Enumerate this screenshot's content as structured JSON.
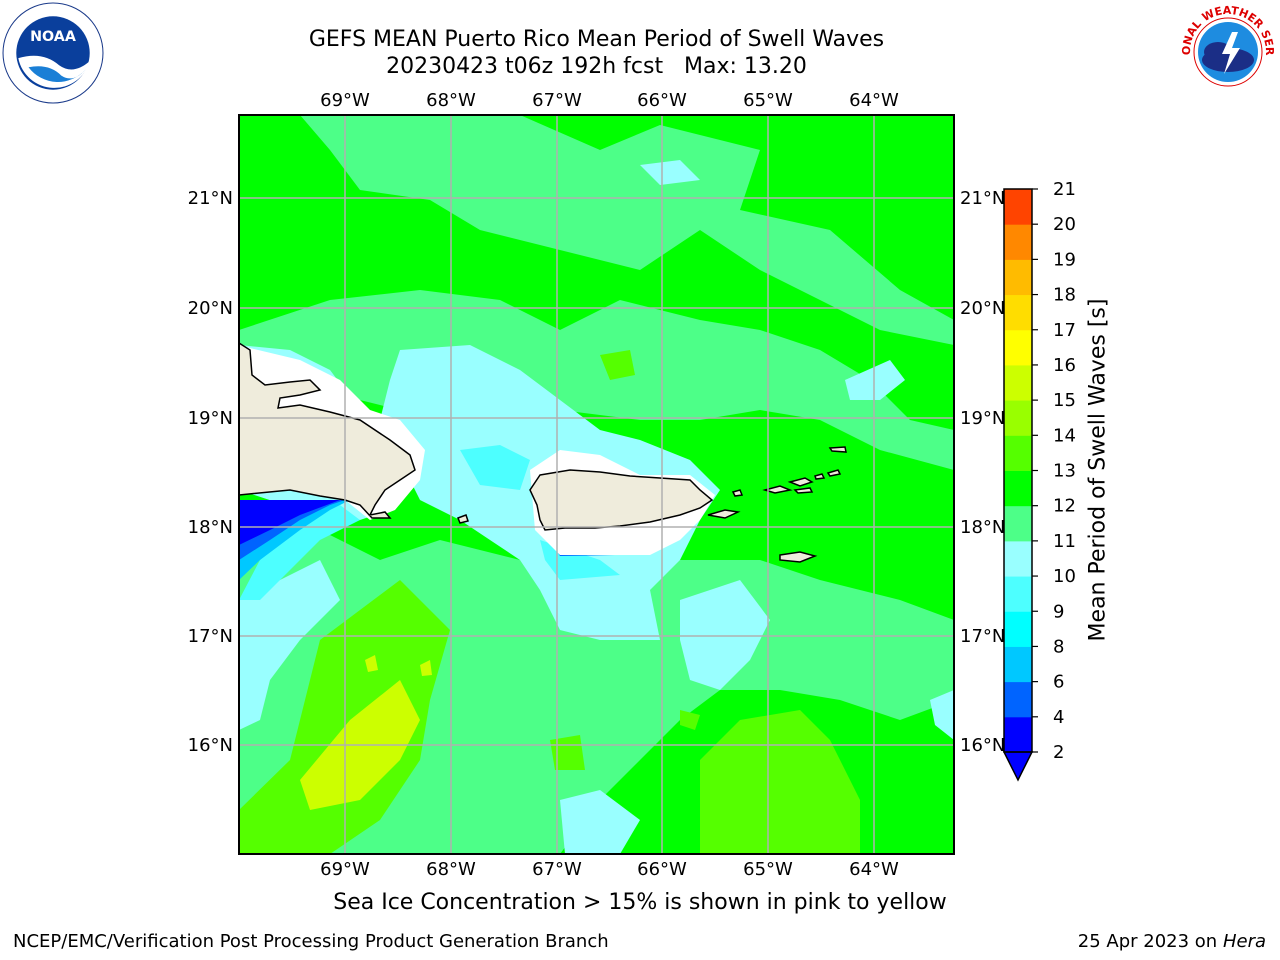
{
  "header": {
    "title_line1": "GEFS MEAN Puerto Rico Mean Period of Swell Waves",
    "title_line2": "20230423 t06z 192h fcst   Max: 13.20"
  },
  "logos": {
    "left": "noaa-logo",
    "right": "nws-logo"
  },
  "chart_data": {
    "type": "heatmap",
    "lon_labels": [
      "69°W",
      "68°W",
      "67°W",
      "66°W",
      "65°W",
      "64°W"
    ],
    "lat_labels": [
      "21°N",
      "20°N",
      "19°N",
      "18°N",
      "17°N",
      "16°N"
    ],
    "colorbar": {
      "label": "Mean Period of Swell Waves [s]",
      "ticks": [
        "2",
        "4",
        "6",
        "8",
        "9",
        "10",
        "11",
        "12",
        "13",
        "14",
        "15",
        "16",
        "17",
        "18",
        "19",
        "20",
        "21"
      ],
      "colors": [
        "#0000ff",
        "#0064ff",
        "#00c8ff",
        "#00ffff",
        "#4dffff",
        "#99ffff",
        "#4dff88",
        "#00ff00",
        "#55ff00",
        "#99ff00",
        "#ccff00",
        "#ffff00",
        "#ffdd00",
        "#ffbb00",
        "#ff8800",
        "#ff4400",
        "#ff0000"
      ],
      "extend": "min"
    },
    "land_color": "#efecdc",
    "max_value": 13.2
  },
  "footer": {
    "note": "Sea Ice Concentration > 15% is shown in pink to yellow",
    "left": "NCEP/EMC/Verification Post Processing Product Generation Branch",
    "date": "25 Apr 2023 on",
    "host": "Hera"
  }
}
